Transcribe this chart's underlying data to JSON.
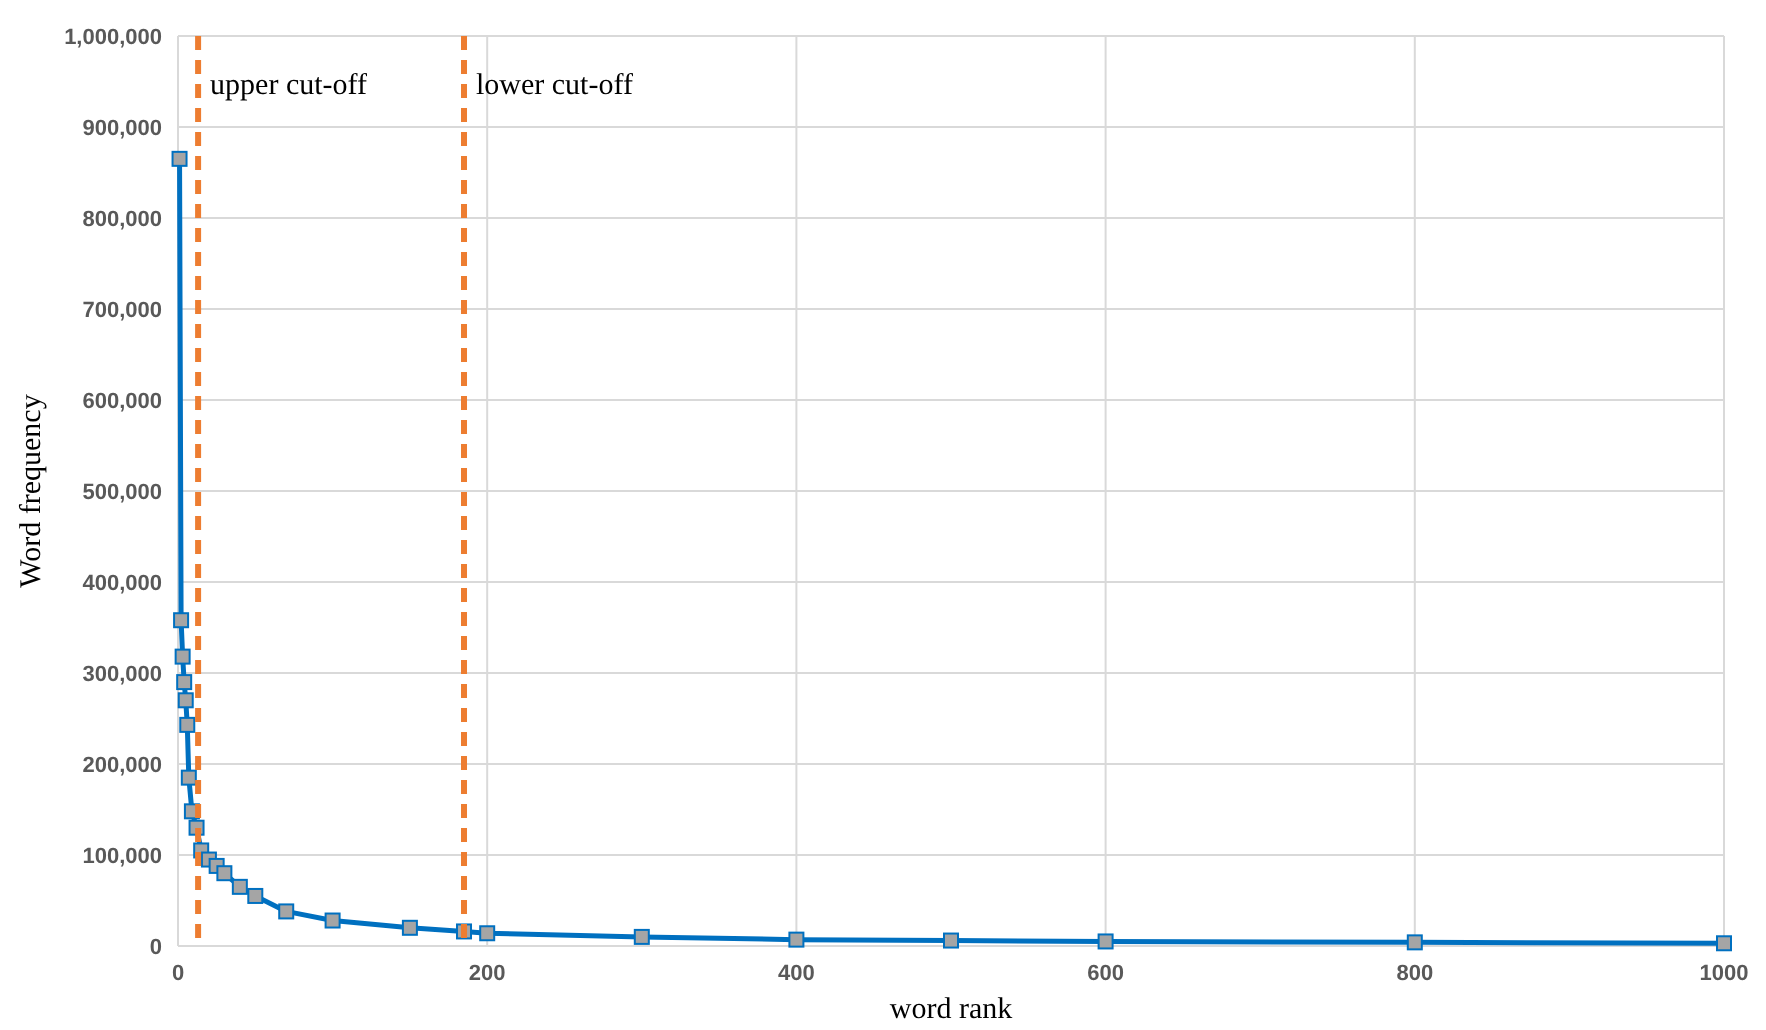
{
  "chart_data": {
    "type": "line",
    "xlabel": "word rank",
    "ylabel": "Word frequency",
    "xlim": [
      0,
      1000
    ],
    "xticks": [
      0,
      200,
      400,
      600,
      800,
      1000
    ],
    "ylim": [
      0,
      1000000
    ],
    "yticks": [
      {
        "value": 0,
        "label": "0"
      },
      {
        "value": 100000,
        "label": "100,000"
      },
      {
        "value": 200000,
        "label": "200,000"
      },
      {
        "value": 300000,
        "label": "300,000"
      },
      {
        "value": 400000,
        "label": "400,000"
      },
      {
        "value": 500000,
        "label": "500,000"
      },
      {
        "value": 600000,
        "label": "600,000"
      },
      {
        "value": 700000,
        "label": "700,000"
      },
      {
        "value": 800000,
        "label": "800,000"
      },
      {
        "value": 900000,
        "label": "900,000"
      },
      {
        "value": 1000000,
        "label": "1,000,000"
      }
    ],
    "grid": true,
    "marker": "square",
    "line_style": "solid",
    "x": [
      1,
      2,
      3,
      4,
      5,
      6,
      7,
      9,
      12,
      15,
      20,
      25,
      30,
      40,
      50,
      70,
      100,
      150,
      185,
      200,
      300,
      400,
      500,
      600,
      800,
      1000
    ],
    "series": [
      {
        "color": "#0070c0",
        "values": [
          865000,
          358000,
          318000,
          290000,
          270000,
          243000,
          185000,
          148000,
          130000,
          105000,
          95000,
          88000,
          80000,
          65000,
          55000,
          38000,
          28000,
          20000,
          16000,
          14000,
          10000,
          7000,
          6000,
          5000,
          4000,
          3000
        ]
      }
    ],
    "ref_lines": [
      {
        "axis": "x",
        "value": 13,
        "label": "upper cut-off",
        "color": "#ed7d31",
        "line_style": "dashed"
      },
      {
        "axis": "x",
        "value": 185,
        "label": "lower cut-off",
        "color": "#ed7d31",
        "line_style": "dashed"
      }
    ]
  }
}
